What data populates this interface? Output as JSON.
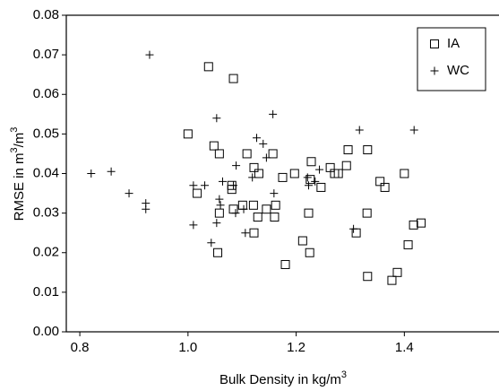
{
  "chart_data": {
    "type": "scatter",
    "x_label": [
      "Bulk Density in kg/m",
      "3"
    ],
    "y_label": [
      "RMSE in m",
      "3",
      "/m",
      "3"
    ],
    "xlim": [
      0.775,
      1.575
    ],
    "ylim": [
      0,
      0.08
    ],
    "xticks": [
      0.8,
      {
        "value": 1.0,
        "label": "1.0"
      },
      1.2,
      1.4
    ],
    "yticks": [
      {
        "value": 0,
        "label": "0.00"
      },
      0.01,
      0.02,
      0.03,
      0.04,
      0.05,
      0.06,
      0.07,
      0.08
    ],
    "legend_position": "upper right",
    "series": [
      {
        "name": "IA",
        "marker": "square",
        "color": "#000000",
        "x": [
          1.038,
          1.084,
          1.0,
          1.048,
          1.058,
          1.109,
          1.017,
          1.058,
          1.055,
          1.081,
          1.081,
          1.084,
          1.101,
          1.122,
          1.131,
          1.121,
          1.129,
          1.122,
          1.145,
          1.157,
          1.16,
          1.162,
          1.175,
          1.18,
          1.197,
          1.212,
          1.223,
          1.225,
          1.226,
          1.228,
          1.246,
          1.263,
          1.271,
          1.278,
          1.293,
          1.296,
          1.311,
          1.331,
          1.332,
          1.332,
          1.355,
          1.364,
          1.377,
          1.387,
          1.4,
          1.407,
          1.417,
          1.431
        ],
        "values": [
          0.067,
          0.064,
          0.05,
          0.047,
          0.045,
          0.045,
          0.035,
          0.03,
          0.02,
          0.037,
          0.036,
          0.031,
          0.032,
          0.0415,
          0.04,
          0.032,
          0.029,
          0.025,
          0.031,
          0.045,
          0.029,
          0.032,
          0.039,
          0.017,
          0.04,
          0.023,
          0.03,
          0.02,
          0.0385,
          0.043,
          0.0365,
          0.0415,
          0.04,
          0.04,
          0.042,
          0.046,
          0.025,
          0.03,
          0.046,
          0.014,
          0.038,
          0.0365,
          0.013,
          0.015,
          0.04,
          0.022,
          0.027,
          0.0275
        ]
      },
      {
        "name": "WC",
        "marker": "plus",
        "color": "#000000",
        "x": [
          0.929,
          1.053,
          1.157,
          0.821,
          0.858,
          0.891,
          0.922,
          0.922,
          1.01,
          1.031,
          1.01,
          1.043,
          1.053,
          1.058,
          1.06,
          1.064,
          1.084,
          1.088,
          1.089,
          1.103,
          1.106,
          1.119,
          1.127,
          1.139,
          1.145,
          1.159,
          1.221,
          1.223,
          1.235,
          1.243,
          1.306,
          1.317,
          1.418
        ],
        "values": [
          0.07,
          0.054,
          0.055,
          0.04,
          0.0405,
          0.035,
          0.0325,
          0.031,
          0.037,
          0.037,
          0.027,
          0.0225,
          0.0275,
          0.0335,
          0.032,
          0.038,
          0.037,
          0.03,
          0.042,
          0.031,
          0.025,
          0.039,
          0.049,
          0.0475,
          0.044,
          0.035,
          0.039,
          0.037,
          0.038,
          0.041,
          0.026,
          0.051,
          0.051
        ]
      }
    ]
  }
}
